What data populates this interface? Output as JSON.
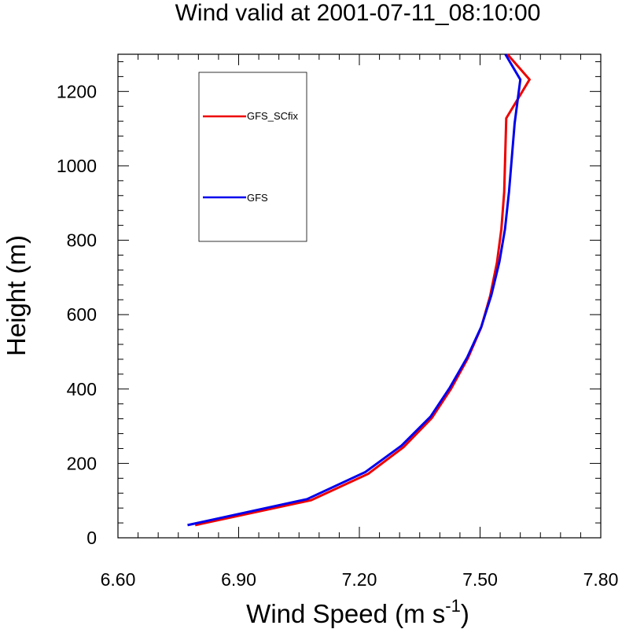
{
  "chart_data": {
    "type": "line",
    "title": "Wind valid at 2001-07-11_08:10:00",
    "xlabel": "Wind Speed (m s",
    "xlabel_superscript": "-1",
    "xlabel_suffix": ")",
    "ylabel": "Height (m)",
    "xlim": [
      6.6,
      7.8
    ],
    "ylim": [
      0,
      1300
    ],
    "xticks": [
      6.6,
      6.9,
      7.2,
      7.5,
      7.8
    ],
    "xtick_labels": [
      "6.60",
      "6.90",
      "7.20",
      "7.50",
      "7.80"
    ],
    "yticks": [
      0,
      200,
      400,
      600,
      800,
      1000,
      1200
    ],
    "ytick_labels": [
      "0",
      "200",
      "400",
      "600",
      "800",
      "1000",
      "1200"
    ],
    "grid": false,
    "legend_position": "top-left",
    "series": [
      {
        "name": "GFS_SCfix",
        "color": "#ee0000",
        "points": [
          [
            6.792,
            34
          ],
          [
            7.08,
            101
          ],
          [
            7.222,
            172
          ],
          [
            7.31,
            244
          ],
          [
            7.38,
            322
          ],
          [
            7.428,
            401
          ],
          [
            7.47,
            483
          ],
          [
            7.503,
            566
          ],
          [
            7.525,
            650
          ],
          [
            7.542,
            740
          ],
          [
            7.553,
            830
          ],
          [
            7.56,
            930
          ],
          [
            7.565,
            1128
          ],
          [
            7.623,
            1232
          ],
          [
            7.568,
            1300
          ]
        ]
      },
      {
        "name": "GFS",
        "color": "#0000ee",
        "points": [
          [
            6.773,
            34
          ],
          [
            7.07,
            104
          ],
          [
            7.215,
            177
          ],
          [
            7.305,
            248
          ],
          [
            7.377,
            326
          ],
          [
            7.425,
            404
          ],
          [
            7.468,
            485
          ],
          [
            7.503,
            567
          ],
          [
            7.528,
            652
          ],
          [
            7.548,
            742
          ],
          [
            7.562,
            830
          ],
          [
            7.572,
            930
          ],
          [
            7.586,
            1115
          ],
          [
            7.6,
            1232
          ],
          [
            7.563,
            1300
          ]
        ]
      }
    ]
  }
}
